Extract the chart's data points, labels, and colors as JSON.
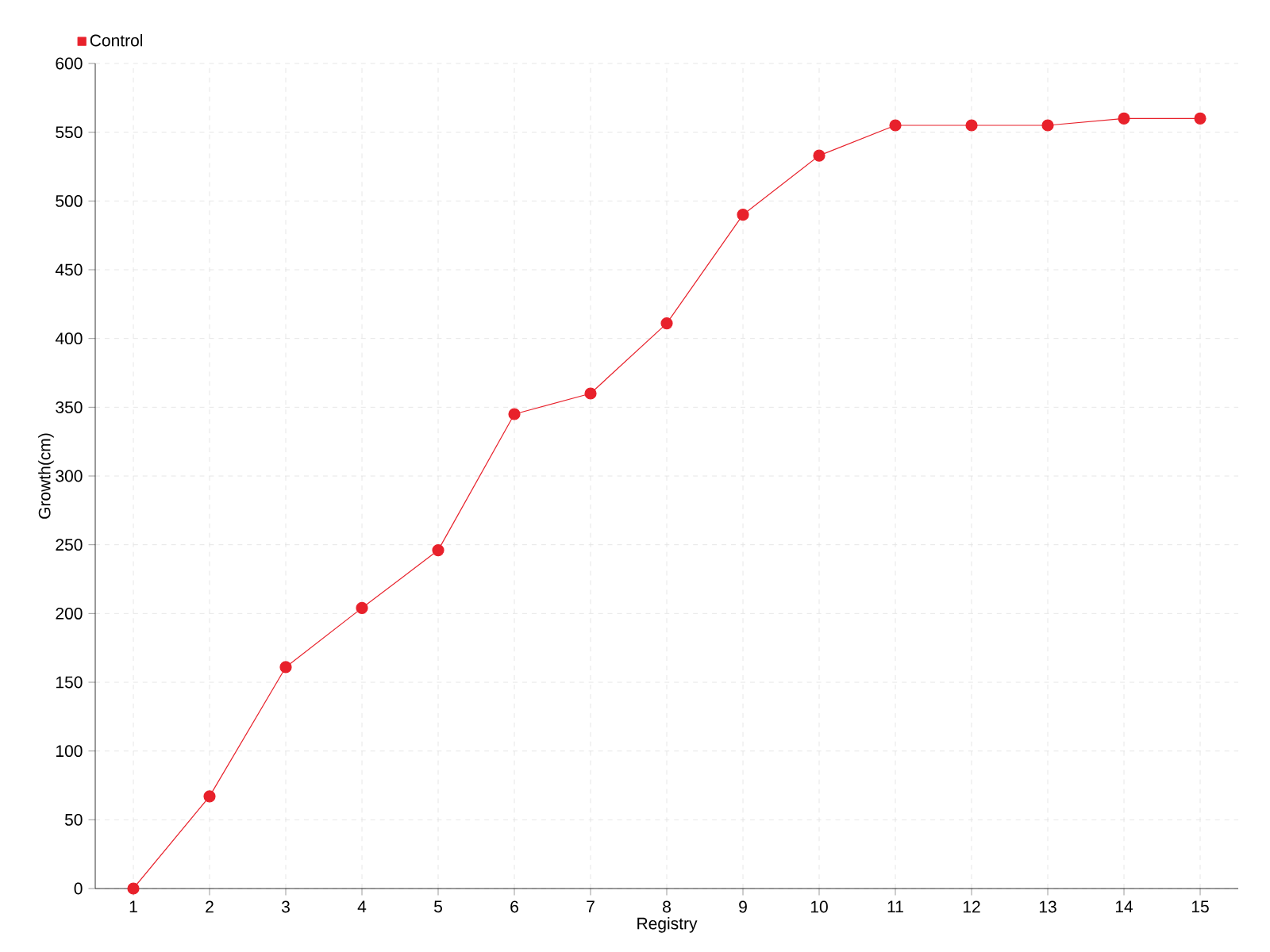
{
  "chart_data": {
    "type": "line",
    "xlabel": "Registry",
    "ylabel": "Growth(cm)",
    "categories": [
      "1",
      "2",
      "3",
      "4",
      "5",
      "6",
      "7",
      "8",
      "9",
      "10",
      "11",
      "12",
      "13",
      "14",
      "15"
    ],
    "series": [
      {
        "name": "Control",
        "color": "#e8212b",
        "values": [
          0,
          67,
          161,
          204,
          246,
          345,
          360,
          411,
          490,
          533,
          555,
          555,
          555,
          560,
          560
        ]
      }
    ],
    "ylim": [
      0,
      600
    ],
    "yticks": [
      0,
      50,
      100,
      150,
      200,
      250,
      300,
      350,
      400,
      450,
      500,
      550,
      600
    ],
    "grid": true,
    "legend": "top left",
    "marker": "circle",
    "line_style": "solid"
  }
}
